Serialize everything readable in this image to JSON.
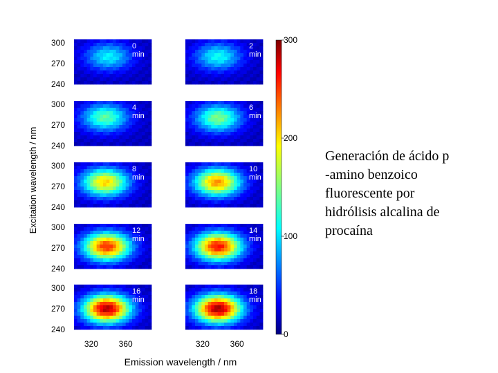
{
  "chart_data": {
    "type": "heatmap",
    "xlabel": "Emission wavelength / nm",
    "ylabel": "Excitation wavelength / nm",
    "x_ticks": [
      "320",
      "360"
    ],
    "y_ticks": [
      "300",
      "270",
      "240"
    ],
    "colorbar": {
      "min": 0,
      "max": 300,
      "ticks": [
        "300",
        "200",
        "100",
        "0"
      ]
    },
    "panels": [
      {
        "label": "0\nmin",
        "peak_intensity": 110,
        "peak_emission": 340,
        "peak_excitation": 280
      },
      {
        "label": "2\nmin",
        "peak_intensity": 115,
        "peak_emission": 338,
        "peak_excitation": 280
      },
      {
        "label": "4\nmin",
        "peak_intensity": 140,
        "peak_emission": 336,
        "peak_excitation": 281
      },
      {
        "label": "6\nmin",
        "peak_intensity": 150,
        "peak_emission": 338,
        "peak_excitation": 280
      },
      {
        "label": "8\nmin",
        "peak_intensity": 200,
        "peak_emission": 336,
        "peak_excitation": 276
      },
      {
        "label": "10\nmin",
        "peak_intensity": 220,
        "peak_emission": 337,
        "peak_excitation": 276
      },
      {
        "label": "12\nmin",
        "peak_intensity": 250,
        "peak_emission": 338,
        "peak_excitation": 272
      },
      {
        "label": "14\nmin",
        "peak_intensity": 260,
        "peak_emission": 338,
        "peak_excitation": 272
      },
      {
        "label": "16\nmin",
        "peak_intensity": 285,
        "peak_emission": 338,
        "peak_excitation": 270
      },
      {
        "label": "18\nmin",
        "peak_intensity": 290,
        "peak_emission": 338,
        "peak_excitation": 270
      }
    ]
  },
  "caption": {
    "lines": [
      "Generación de ácido p",
      "-amino benzoico",
      "fluorescente por",
      "hidrólisis alcalina de",
      "procaína"
    ]
  }
}
